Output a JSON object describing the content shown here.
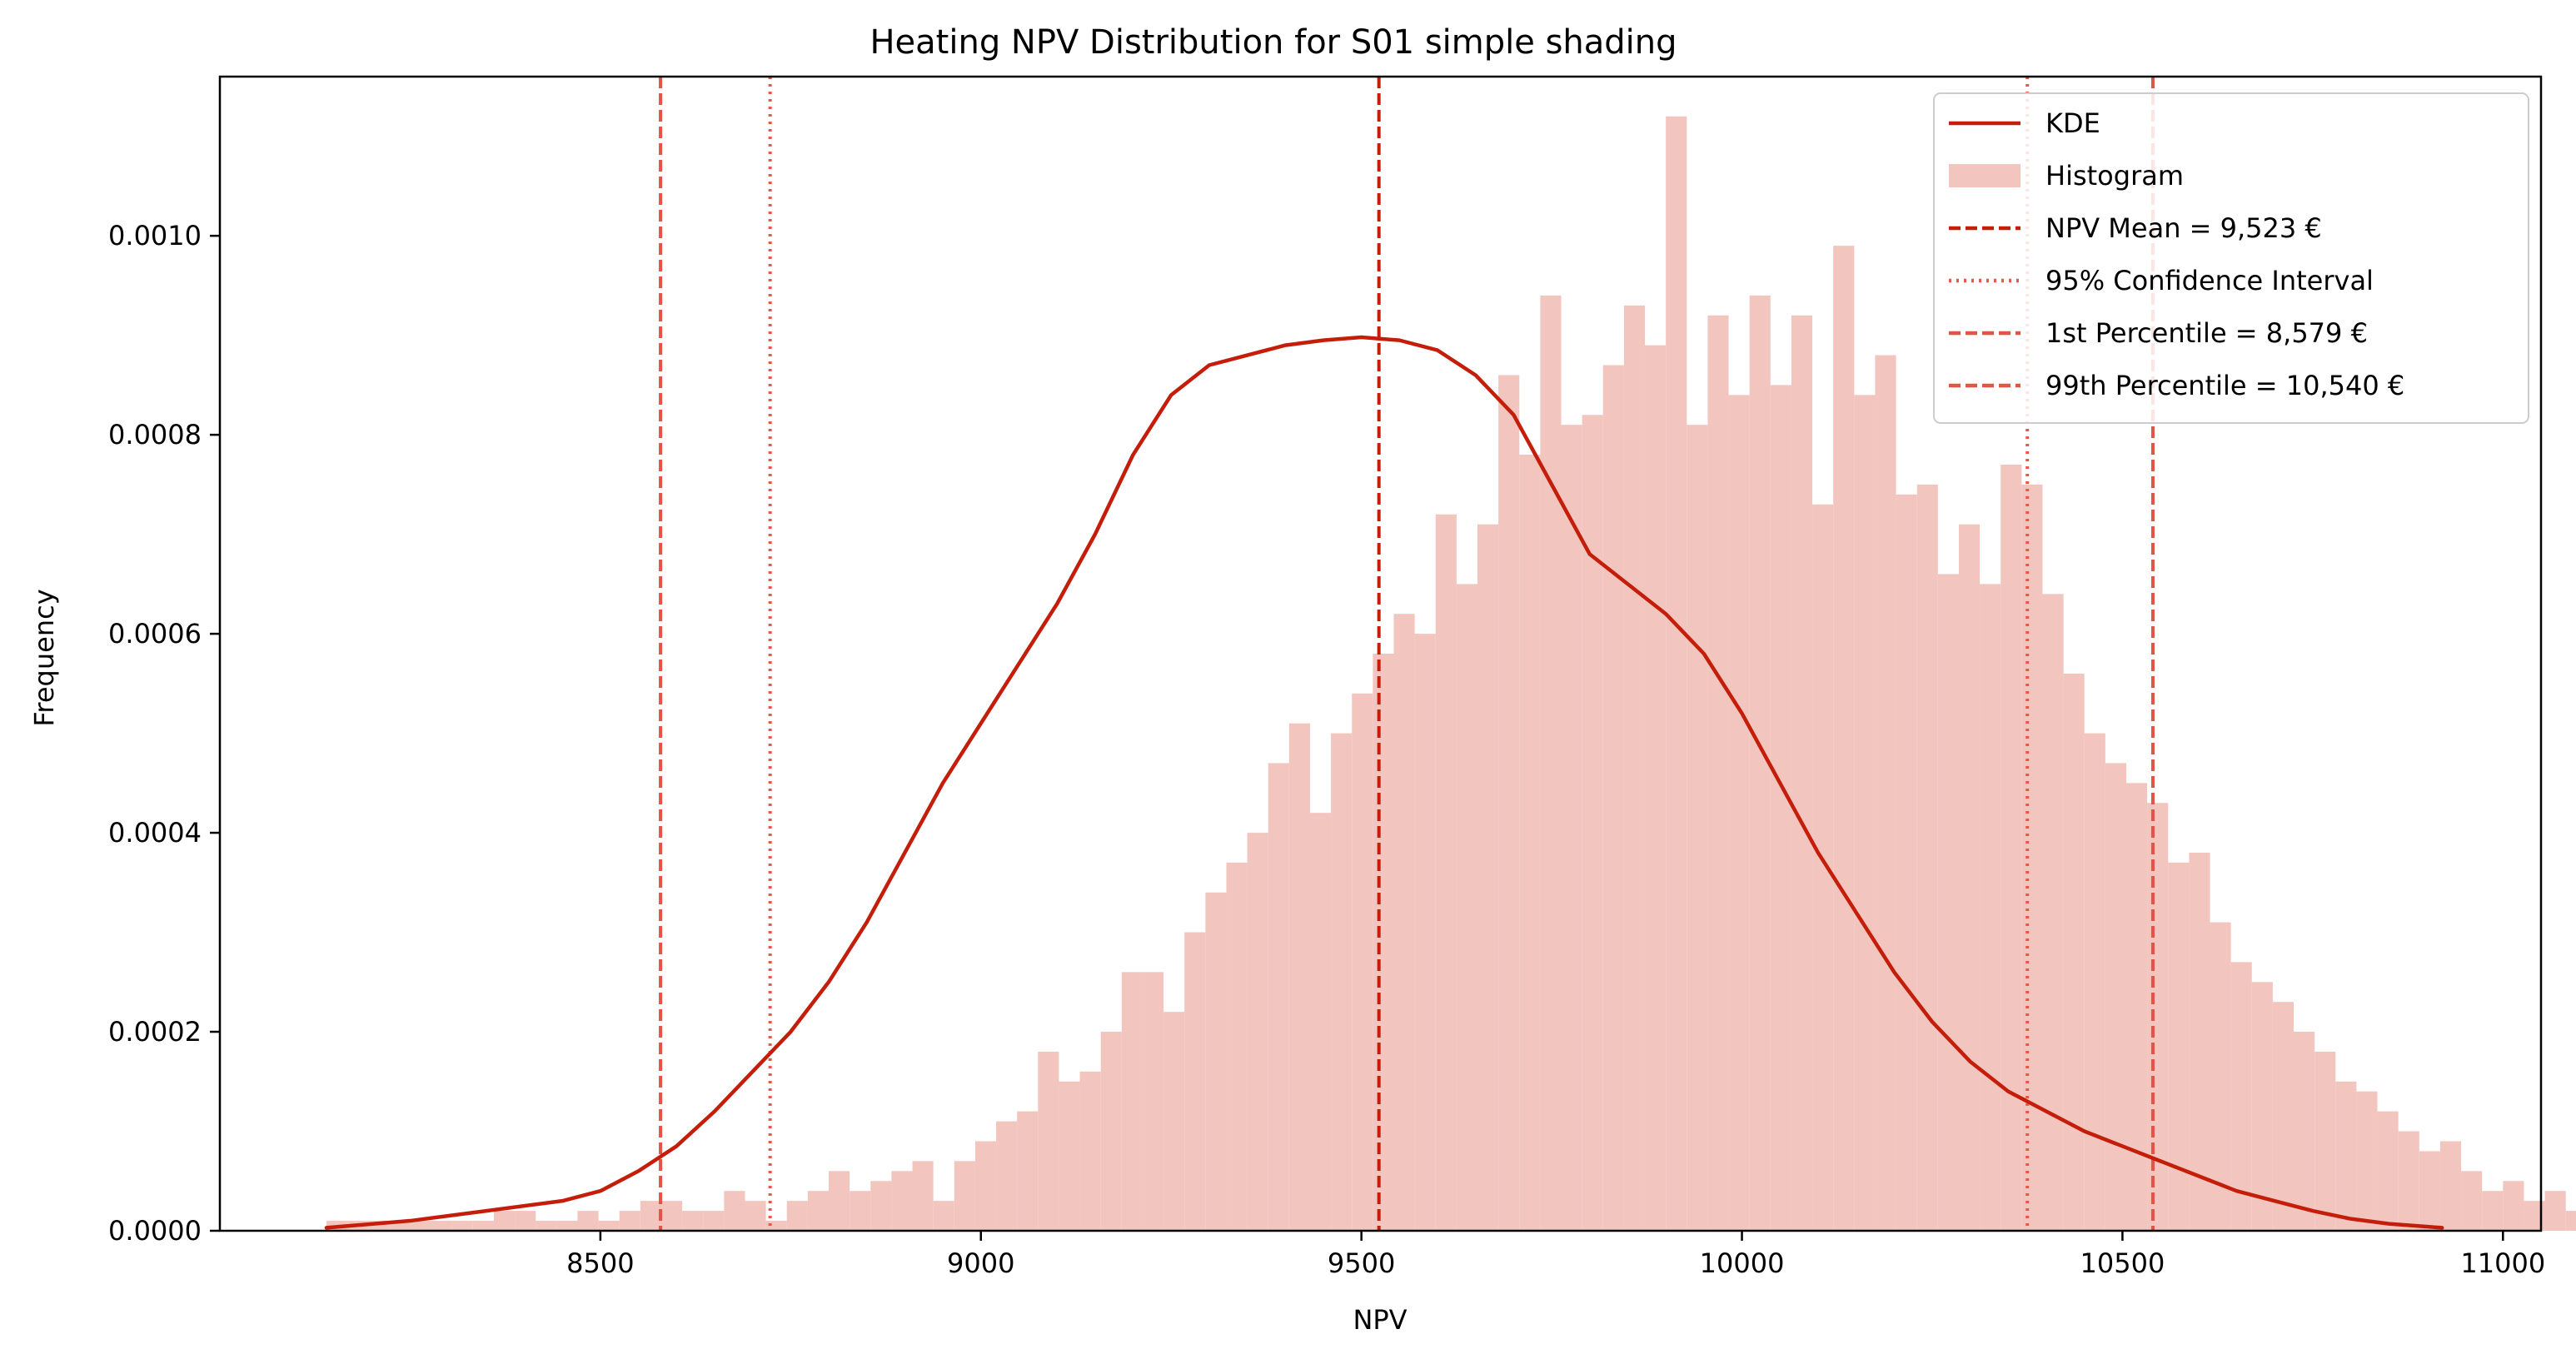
{
  "chart_data": {
    "type": "bar",
    "title": "Heating NPV Distribution for S01 simple shading",
    "xlabel": "NPV",
    "ylabel": "Frequency",
    "xlim": [
      8000,
      11050
    ],
    "ylim": [
      0,
      0.00116
    ],
    "x_ticks": [
      8500,
      9000,
      9500,
      10000,
      10500,
      11000
    ],
    "x_tick_labels": [
      "8500",
      "9000",
      "9500",
      "10000",
      "10500",
      "11000"
    ],
    "y_ticks": [
      0,
      0.0002,
      0.0004,
      0.0006,
      0.0008,
      0.001
    ],
    "y_tick_labels": [
      "0.0000",
      "0.0002",
      "0.0004",
      "0.0006",
      "0.0008",
      "0.0010"
    ],
    "grid": false,
    "legend_position": "top-right",
    "colors": {
      "kde": "#c41e0a",
      "histogram": "#f2c5bf",
      "mean": "#c41e0a",
      "ci": "#e8584a",
      "percentile": "#e05545"
    },
    "histogram": {
      "name": "Histogram",
      "bin_start": 8140,
      "bin_width": 27.5,
      "values": [
        1e-05,
        1e-05,
        1e-05,
        1e-05,
        1e-05,
        1e-05,
        1e-05,
        1e-05,
        2e-05,
        2e-05,
        1e-05,
        1e-05,
        2e-05,
        1e-05,
        2e-05,
        3e-05,
        3e-05,
        2e-05,
        2e-05,
        4e-05,
        3e-05,
        1e-05,
        3e-05,
        4e-05,
        6e-05,
        4e-05,
        5e-05,
        6e-05,
        7e-05,
        3e-05,
        7e-05,
        9e-05,
        0.00011,
        0.00012,
        0.00018,
        0.00015,
        0.00016,
        0.0002,
        0.00026,
        0.00026,
        0.00022,
        0.0003,
        0.00034,
        0.00037,
        0.0004,
        0.00047,
        0.00051,
        0.00042,
        0.0005,
        0.00054,
        0.00058,
        0.00062,
        0.0006,
        0.00072,
        0.00065,
        0.00071,
        0.00086,
        0.00078,
        0.00094,
        0.00081,
        0.00082,
        0.00087,
        0.00093,
        0.00089,
        0.00112,
        0.00081,
        0.00092,
        0.00084,
        0.00094,
        0.00085,
        0.00092,
        0.00073,
        0.00099,
        0.00084,
        0.00088,
        0.00074,
        0.00075,
        0.00066,
        0.00071,
        0.00065,
        0.00077,
        0.00075,
        0.00064,
        0.00056,
        0.0005,
        0.00047,
        0.00045,
        0.00043,
        0.00037,
        0.00038,
        0.00031,
        0.00027,
        0.00025,
        0.00023,
        0.0002,
        0.00018,
        0.00015,
        0.00014,
        0.00012,
        0.0001,
        8e-05,
        9e-05,
        6e-05,
        4e-05,
        5e-05,
        3e-05,
        4e-05,
        2e-05,
        3e-05,
        2e-05,
        1e-05,
        1e-05,
        1e-05,
        1e-05,
        1e-05,
        1e-05,
        1e-05,
        1e-05,
        1e-05,
        0.0,
        1e-05,
        1e-05,
        1e-05,
        0.0,
        0.0,
        1e-05,
        0.0
      ]
    },
    "kde": {
      "name": "KDE",
      "x": [
        8140,
        8250,
        8350,
        8450,
        8500,
        8550,
        8600,
        8650,
        8700,
        8750,
        8800,
        8850,
        8900,
        8950,
        9000,
        9050,
        9100,
        9150,
        9200,
        9250,
        9300,
        9350,
        9400,
        9450,
        9500,
        9550,
        9600,
        9650,
        9700,
        9750,
        9800,
        9850,
        9900,
        9950,
        10000,
        10050,
        10100,
        10150,
        10200,
        10250,
        10300,
        10350,
        10400,
        10450,
        10500,
        10550,
        10600,
        10650,
        10700,
        10750,
        10800,
        10850,
        10920
      ],
      "y": [
        3e-06,
        1e-05,
        2e-05,
        3e-05,
        4e-05,
        6e-05,
        8.5e-05,
        0.00012,
        0.00016,
        0.0002,
        0.00025,
        0.00031,
        0.00038,
        0.00045,
        0.00051,
        0.00057,
        0.00063,
        0.0007,
        0.00078,
        0.00084,
        0.00087,
        0.00088,
        0.00089,
        0.000895,
        0.000898,
        0.000895,
        0.000885,
        0.00086,
        0.00082,
        0.00075,
        0.00068,
        0.00065,
        0.00062,
        0.00058,
        0.00052,
        0.00045,
        0.00038,
        0.00032,
        0.00026,
        0.00021,
        0.00017,
        0.00014,
        0.00012,
        0.0001,
        8.5e-05,
        7e-05,
        5.5e-05,
        4e-05,
        3e-05,
        2e-05,
        1.2e-05,
        7e-06,
        3e-06
      ]
    },
    "vlines": [
      {
        "name": "NPV Mean = 9,523 €",
        "x": 9523,
        "style": "dashed",
        "color": "#c41e0a"
      },
      {
        "name": "95% Confidence Interval",
        "x": 8723,
        "style": "dotted",
        "color": "#e8584a"
      },
      {
        "name": "95% Confidence Interval",
        "x": 10375,
        "style": "dotted",
        "color": "#e8584a"
      },
      {
        "name": "1st Percentile = 8,579 €",
        "x": 8579,
        "style": "dashed",
        "color": "#e05545"
      },
      {
        "name": "99th Percentile = 10,540 €",
        "x": 10540,
        "style": "dashed",
        "color": "#e05545"
      }
    ],
    "legend": [
      {
        "label": "KDE",
        "kind": "line",
        "color": "#c41e0a"
      },
      {
        "label": "Histogram",
        "kind": "patch",
        "color": "#f2c5bf"
      },
      {
        "label": "NPV Mean = 9,523 €",
        "kind": "dashed",
        "color": "#c41e0a"
      },
      {
        "label": "95% Confidence Interval",
        "kind": "dotted",
        "color": "#e8584a"
      },
      {
        "label": "1st Percentile = 8,579 €",
        "kind": "dashed",
        "color": "#e05545"
      },
      {
        "label": "99th Percentile = 10,540 €",
        "kind": "dashed",
        "color": "#e05545"
      }
    ]
  }
}
